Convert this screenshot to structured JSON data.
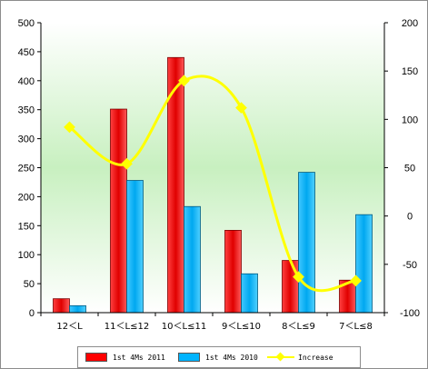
{
  "chart_data": {
    "type": "bar",
    "categories": [
      "12＜L",
      "11＜L≤12",
      "10＜L≤11",
      "9＜L≤10",
      "8＜L≤9",
      "7＜L≤8"
    ],
    "series": [
      {
        "name": "1st 4Ms 2011",
        "type": "bar",
        "axis": "left",
        "color": "#ff0000",
        "values": [
          24,
          351,
          440,
          142,
          90,
          56
        ]
      },
      {
        "name": "1st 4Ms 2010",
        "type": "bar",
        "axis": "left",
        "color": "#00b4ff",
        "values": [
          12,
          228,
          183,
          67,
          242,
          169
        ]
      },
      {
        "name": "Increase",
        "type": "line",
        "axis": "right",
        "color": "#ffff00",
        "values": [
          92,
          54,
          140,
          112,
          -63,
          -67
        ]
      }
    ],
    "ylim": [
      0,
      500
    ],
    "yticks": [
      "0",
      "50",
      "100",
      "150",
      "200",
      "250",
      "300",
      "350",
      "400",
      "450",
      "500"
    ],
    "y2lim": [
      -100,
      200
    ],
    "y2ticks": [
      "-100",
      "-50",
      "0",
      "50",
      "100",
      "150",
      "200"
    ],
    "legend_position": "bottom",
    "grid": false,
    "plot_background": "gradient green to white"
  }
}
